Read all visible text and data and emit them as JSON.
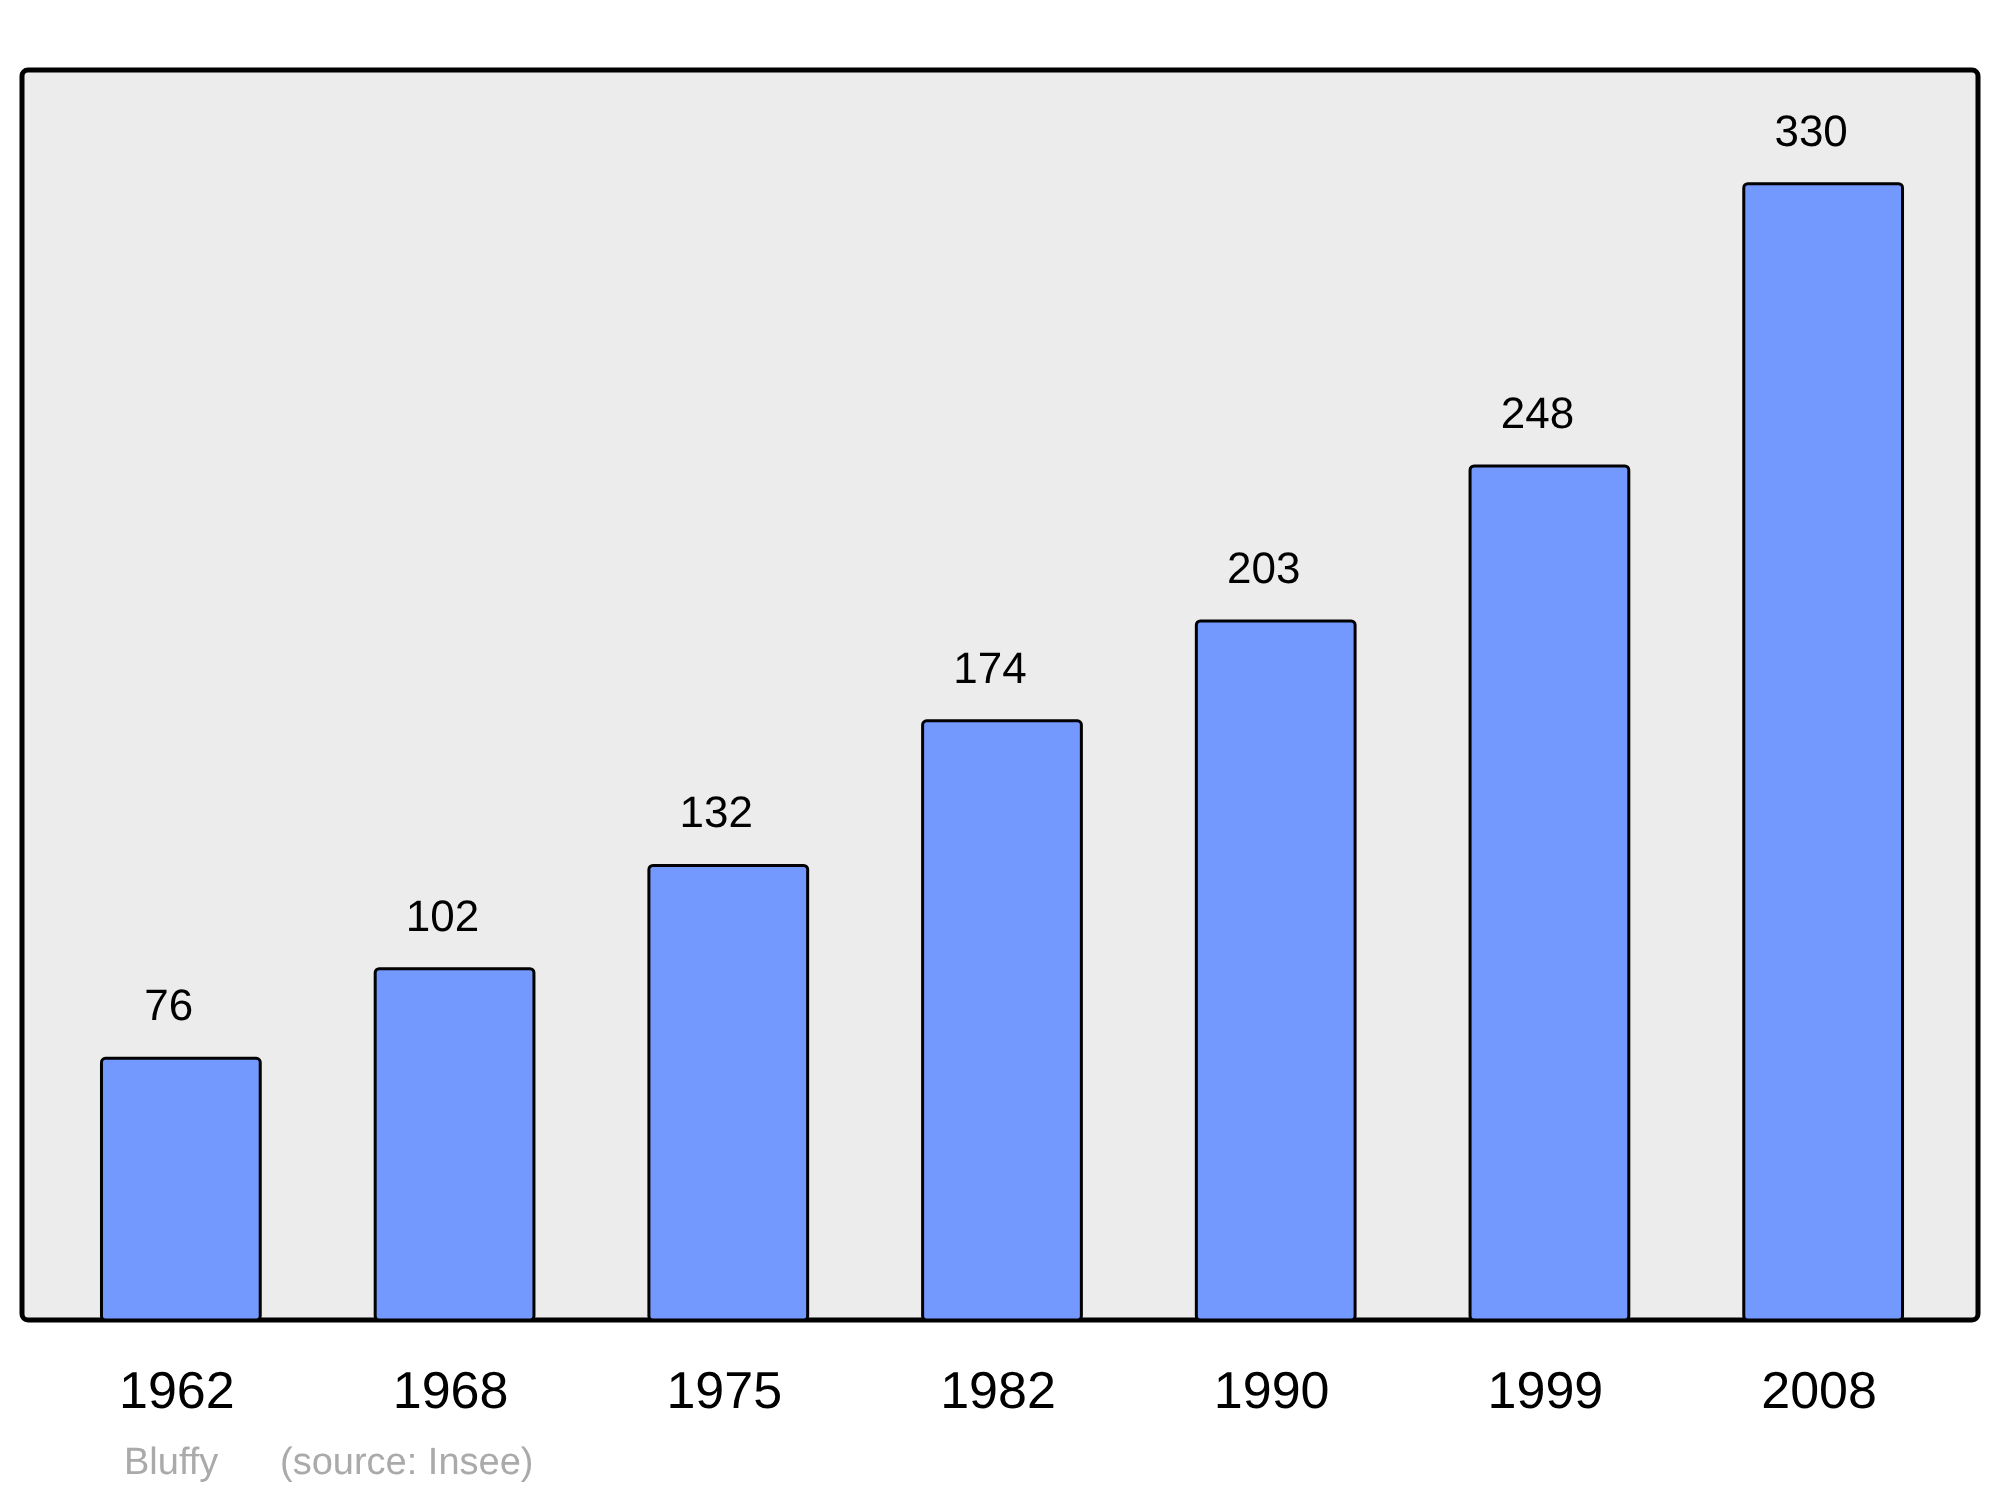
{
  "chart_data": {
    "type": "bar",
    "categories": [
      "1962",
      "1968",
      "1975",
      "1982",
      "1990",
      "1999",
      "2008"
    ],
    "values": [
      76,
      102,
      132,
      174,
      203,
      248,
      330
    ],
    "color": "#7399ff",
    "data_labels": true,
    "annotations": [
      "Bluffy",
      "(source: Insee)"
    ]
  }
}
